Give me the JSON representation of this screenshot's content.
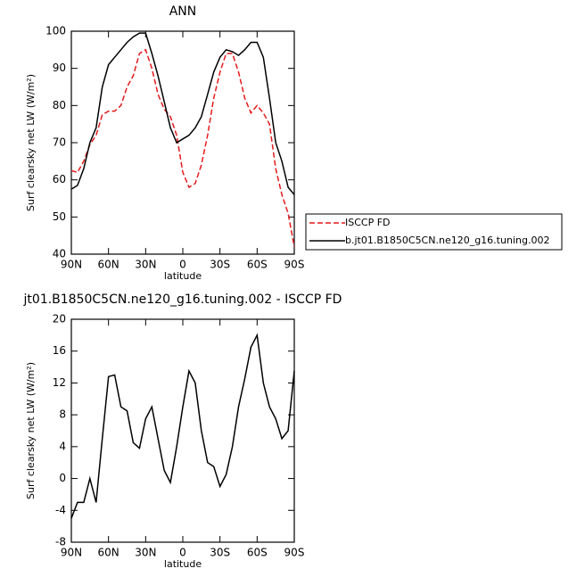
{
  "chart_data": [
    {
      "type": "line",
      "title": "ANN",
      "xlabel": "latitude",
      "ylabel": "Surf clearsky net LW (W/m²)",
      "x": [
        90,
        85,
        80,
        75,
        70,
        65,
        60,
        55,
        50,
        45,
        40,
        35,
        30,
        25,
        20,
        15,
        10,
        5,
        0,
        -5,
        -10,
        -15,
        -20,
        -25,
        -30,
        -35,
        -40,
        -45,
        -50,
        -55,
        -60,
        -65,
        -70,
        -75,
        -80,
        -85,
        -90
      ],
      "xlim": [
        90,
        -90
      ],
      "xticks": [
        {
          "value": 90,
          "label": "90N"
        },
        {
          "value": 60,
          "label": "60N"
        },
        {
          "value": 30,
          "label": "30N"
        },
        0,
        {
          "value": -30,
          "label": "30S"
        },
        {
          "value": -60,
          "label": "60S"
        },
        {
          "value": -90,
          "label": "90S"
        }
      ],
      "ylim": [
        40,
        100
      ],
      "yticks": [
        40,
        50,
        60,
        70,
        80,
        90,
        100
      ],
      "series": [
        {
          "name": "ISCCP FD",
          "color": "#e41a1c",
          "style": "dashed",
          "values": [
            62.5,
            62,
            65,
            69.5,
            72,
            77.5,
            78.5,
            78.5,
            80,
            85,
            88,
            94,
            95,
            90,
            83,
            79,
            77,
            72,
            62,
            58,
            59,
            64,
            72,
            82,
            89,
            94,
            94,
            89,
            82,
            78,
            80,
            78,
            75,
            63,
            56,
            51,
            42
          ]
        },
        {
          "name": "b.jt01.B1850C5CN.ne120_g16.tuning.002",
          "color": "#000000",
          "style": "solid",
          "values": [
            57.5,
            58.5,
            63,
            70,
            74,
            85,
            91,
            93,
            95,
            97,
            98.5,
            99.5,
            99.5,
            94,
            88,
            81,
            74,
            70,
            71,
            72,
            74,
            77,
            83,
            89,
            93,
            95,
            94.5,
            93.5,
            95,
            97,
            97,
            93,
            82,
            70,
            65,
            58,
            56
          ]
        }
      ]
    },
    {
      "type": "line",
      "title": "jt01.B1850C5CN.ne120_g16.tuning.002 - ISCCP FD",
      "xlabel": "latitude",
      "ylabel": "Surf clearsky net LW (W/m²)",
      "x": [
        90,
        85,
        80,
        75,
        70,
        65,
        60,
        55,
        50,
        45,
        40,
        35,
        30,
        25,
        20,
        15,
        10,
        5,
        0,
        -5,
        -10,
        -15,
        -20,
        -25,
        -30,
        -35,
        -40,
        -45,
        -50,
        -55,
        -60,
        -65,
        -70,
        -75,
        -80,
        -85,
        -90
      ],
      "xlim": [
        90,
        -90
      ],
      "xticks": [
        {
          "value": 90,
          "label": "90N"
        },
        {
          "value": 60,
          "label": "60N"
        },
        {
          "value": 30,
          "label": "30N"
        },
        0,
        {
          "value": -30,
          "label": "30S"
        },
        {
          "value": -60,
          "label": "60S"
        },
        {
          "value": -90,
          "label": "90S"
        }
      ],
      "ylim": [
        -8,
        20
      ],
      "yticks": [
        -8,
        -4,
        0,
        4,
        8,
        12,
        16,
        20
      ],
      "series": [
        {
          "color": "#000000",
          "style": "solid",
          "values": [
            -5,
            -3,
            -3,
            0,
            -3,
            5,
            12.8,
            13,
            9,
            8.5,
            4.5,
            3.8,
            7.5,
            9,
            5,
            1,
            -0.5,
            4,
            9,
            13.5,
            12,
            6,
            2,
            1.5,
            -1,
            0.5,
            4,
            9,
            12.5,
            16.5,
            18,
            12,
            9,
            7.5,
            5,
            6,
            13.5
          ]
        }
      ]
    }
  ]
}
